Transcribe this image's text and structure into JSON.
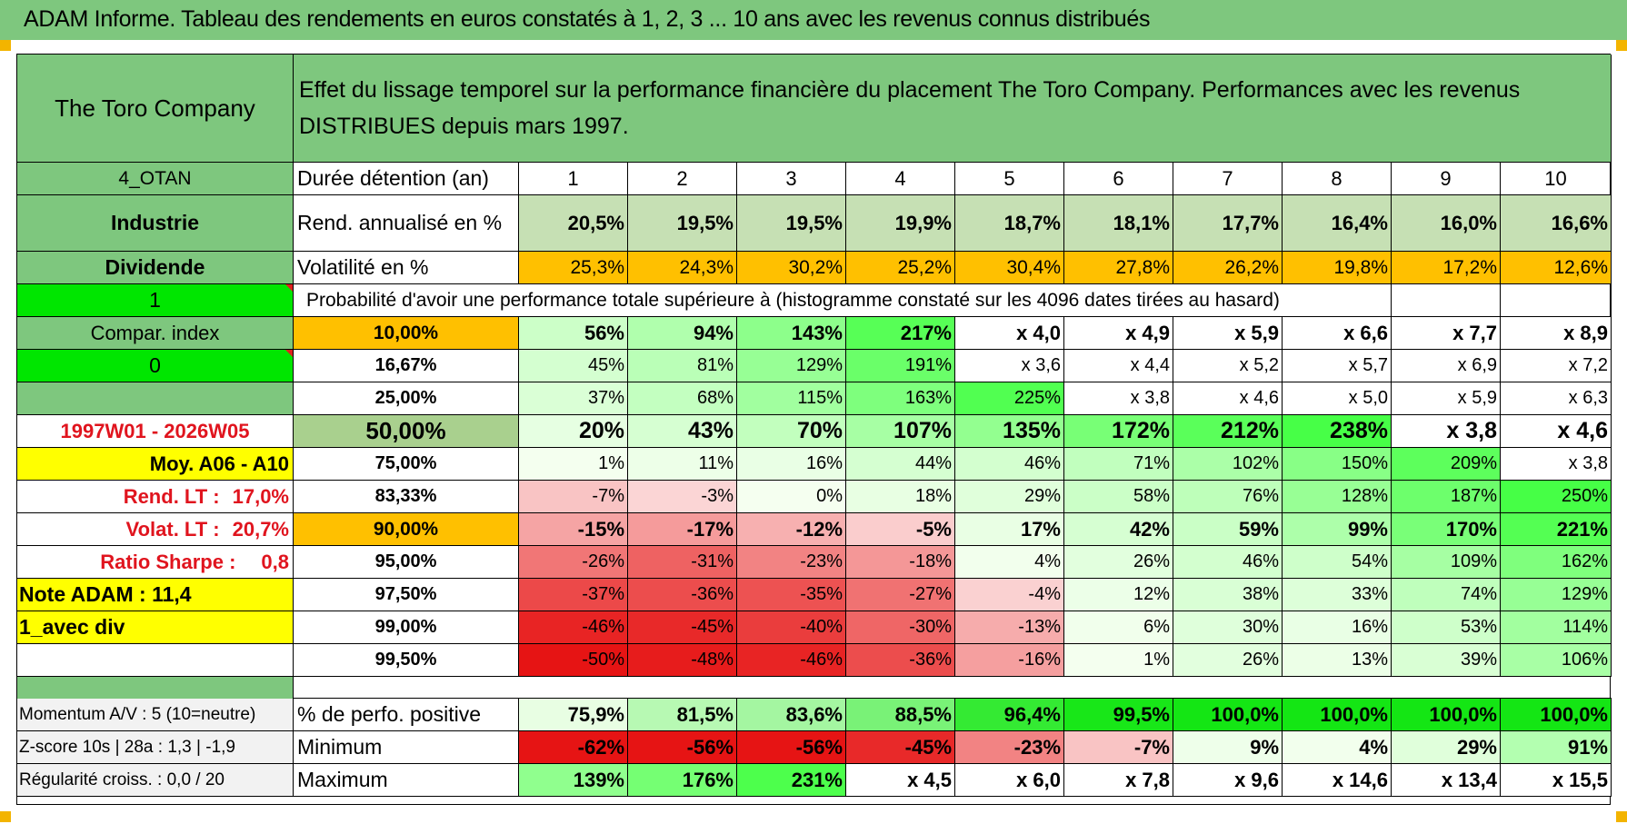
{
  "title": "ADAM Informe. Tableau des rendements en euros constatés à 1, 2, 3 ... 10 ans avec les revenus connus distribués",
  "company": "The Toro Company",
  "description": "Effet du lissage temporel sur la performance financière du placement The Toro Company. Performances avec les revenus DISTRIBUES depuis mars 1997.",
  "left": {
    "code": "4_OTAN",
    "sector": "Industrie",
    "type": "Dividende",
    "val1": "1",
    "compar": "Compar. index",
    "val0": "0",
    "period": "1997W01 - 2026W05",
    "moy": "Moy. A06 - A10",
    "rend_label": "Rend. LT :",
    "rend_value": "17,0%",
    "volat_label": "Volat. LT :",
    "volat_value": "20,7%",
    "sharpe_label": "Ratio Sharpe :",
    "sharpe_value": "0,8",
    "note": "Note ADAM : 11,4",
    "avec_div": "1_avec div",
    "momentum": "Momentum A/V : 5 (10=neutre)",
    "zscore": "Z-score 10s | 28a : 1,3 | -1,9",
    "regularite": "Régularité croiss. : 0,0 / 20"
  },
  "duree_label": "Durée détention (an)",
  "years": [
    "1",
    "2",
    "3",
    "4",
    "5",
    "6",
    "7",
    "8",
    "9",
    "10"
  ],
  "rend_row": {
    "label": "Rend. annualisé en %",
    "values": [
      "20,5%",
      "19,5%",
      "19,5%",
      "19,9%",
      "18,7%",
      "18,1%",
      "17,7%",
      "16,4%",
      "16,0%",
      "16,6%"
    ]
  },
  "vol_row": {
    "label": "Volatilité en %",
    "values": [
      "25,3%",
      "24,3%",
      "30,2%",
      "25,2%",
      "30,4%",
      "27,8%",
      "26,2%",
      "19,8%",
      "17,2%",
      "12,6%"
    ]
  },
  "proba_label": "Probabilité d'avoir une performance totale supérieure à (histogramme constaté sur les 4096 dates tirées au hasard)",
  "prob_rows": [
    {
      "p": "10,00%",
      "values": [
        "56%",
        "94%",
        "143%",
        "217%",
        "x 4,0",
        "x 4,9",
        "x 5,9",
        "x 6,6",
        "x 7,7",
        "x 8,9"
      ]
    },
    {
      "p": "16,67%",
      "values": [
        "45%",
        "81%",
        "129%",
        "191%",
        "x 3,6",
        "x 4,4",
        "x 5,2",
        "x 5,7",
        "x 6,9",
        "x 7,2"
      ]
    },
    {
      "p": "25,00%",
      "values": [
        "37%",
        "68%",
        "115%",
        "163%",
        "225%",
        "x 3,8",
        "x 4,6",
        "x 5,0",
        "x 5,9",
        "x 6,3"
      ]
    },
    {
      "p": "50,00%",
      "values": [
        "20%",
        "43%",
        "70%",
        "107%",
        "135%",
        "172%",
        "212%",
        "238%",
        "x 3,8",
        "x 4,6"
      ]
    },
    {
      "p": "75,00%",
      "values": [
        "1%",
        "11%",
        "16%",
        "44%",
        "46%",
        "71%",
        "102%",
        "150%",
        "209%",
        "x 3,8"
      ]
    },
    {
      "p": "83,33%",
      "values": [
        "-7%",
        "-3%",
        "0%",
        "18%",
        "29%",
        "58%",
        "76%",
        "128%",
        "187%",
        "250%"
      ]
    },
    {
      "p": "90,00%",
      "values": [
        "-15%",
        "-17%",
        "-12%",
        "-5%",
        "17%",
        "42%",
        "59%",
        "99%",
        "170%",
        "221%"
      ]
    },
    {
      "p": "95,00%",
      "values": [
        "-26%",
        "-31%",
        "-23%",
        "-18%",
        "4%",
        "26%",
        "46%",
        "54%",
        "109%",
        "162%"
      ]
    },
    {
      "p": "97,50%",
      "values": [
        "-37%",
        "-36%",
        "-35%",
        "-27%",
        "-4%",
        "12%",
        "38%",
        "33%",
        "74%",
        "129%"
      ]
    },
    {
      "p": "99,00%",
      "values": [
        "-46%",
        "-45%",
        "-40%",
        "-30%",
        "-13%",
        "6%",
        "30%",
        "16%",
        "53%",
        "114%"
      ]
    },
    {
      "p": "99,50%",
      "values": [
        "-50%",
        "-48%",
        "-46%",
        "-36%",
        "-16%",
        "1%",
        "26%",
        "13%",
        "39%",
        "106%"
      ]
    }
  ],
  "stat_rows": [
    {
      "label": "% de perfo. positive",
      "values": [
        "75,9%",
        "81,5%",
        "83,6%",
        "88,5%",
        "96,4%",
        "99,5%",
        "100,0%",
        "100,0%",
        "100,0%",
        "100,0%"
      ]
    },
    {
      "label": "Minimum",
      "values": [
        "-62%",
        "-56%",
        "-56%",
        "-45%",
        "-23%",
        "-7%",
        "9%",
        "4%",
        "29%",
        "91%"
      ]
    },
    {
      "label": "Maximum",
      "values": [
        "139%",
        "176%",
        "231%",
        "x 4,5",
        "x 6,0",
        "x 7,8",
        "x 9,6",
        "x 14,6",
        "x 13,4",
        "x 15,5"
      ]
    }
  ],
  "colors": {
    "header_green": "#7ec77e",
    "bright_green": "#00e600",
    "orange": "#ffc000",
    "yellow": "#ffff00",
    "label_red": "#e0141e"
  }
}
